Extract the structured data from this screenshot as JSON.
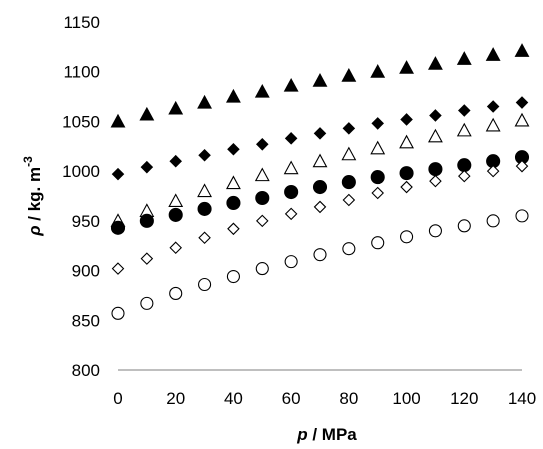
{
  "chart_data": {
    "type": "scatter",
    "title": "",
    "xlabel": {
      "symbol": "p",
      "rest": " / MPa"
    },
    "ylabel": {
      "symbol": "ρ",
      "rest": " / kg. m",
      "sup": "-3"
    },
    "xlim": [
      0,
      140
    ],
    "ylim": [
      800,
      1150
    ],
    "x_ticks": [
      0,
      20,
      40,
      60,
      80,
      100,
      120,
      140
    ],
    "y_ticks": [
      800,
      850,
      900,
      950,
      1000,
      1050,
      1100,
      1150
    ],
    "grid": false,
    "legend": "none",
    "x": [
      0,
      10,
      20,
      30,
      40,
      50,
      60,
      70,
      80,
      90,
      100,
      110,
      120,
      130,
      140
    ],
    "series": [
      {
        "marker": "triangle-filled",
        "values": [
          1050,
          1057,
          1063,
          1069,
          1075,
          1080,
          1086,
          1091,
          1096,
          1100,
          1104,
          1108,
          1113,
          1117,
          1121
        ]
      },
      {
        "marker": "diamond-filled",
        "values": [
          997,
          1004,
          1010,
          1016,
          1022,
          1027,
          1033,
          1038,
          1043,
          1048,
          1052,
          1056,
          1061,
          1065,
          1069
        ]
      },
      {
        "marker": "triangle-open",
        "values": [
          950,
          960,
          970,
          980,
          988,
          996,
          1003,
          1010,
          1017,
          1023,
          1029,
          1035,
          1041,
          1046,
          1051
        ]
      },
      {
        "marker": "circle-filled",
        "values": [
          943,
          950,
          956,
          962,
          968,
          973,
          979,
          984,
          989,
          994,
          998,
          1002,
          1006,
          1010,
          1014
        ]
      },
      {
        "marker": "diamond-open",
        "values": [
          902,
          912,
          923,
          933,
          942,
          950,
          957,
          964,
          971,
          978,
          984,
          990,
          995,
          1000,
          1005
        ]
      },
      {
        "marker": "circle-open",
        "values": [
          857,
          867,
          877,
          886,
          894,
          902,
          909,
          916,
          922,
          928,
          934,
          940,
          945,
          950,
          955
        ]
      }
    ]
  }
}
